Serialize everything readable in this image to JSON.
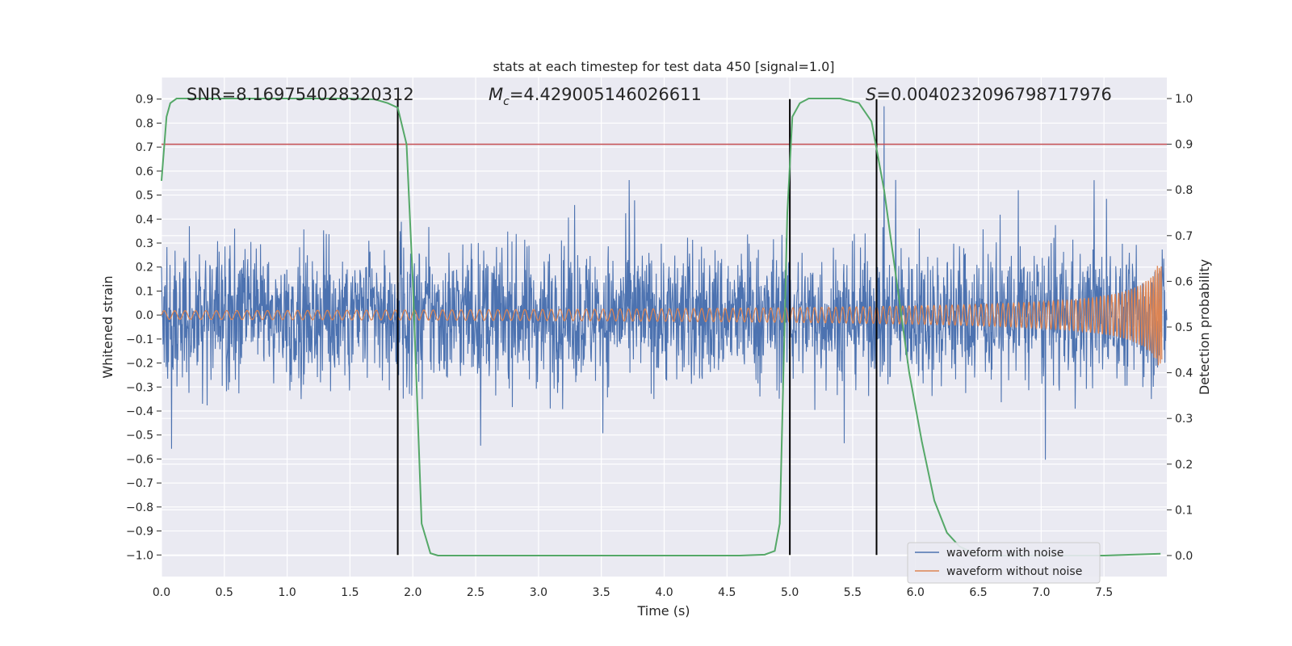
{
  "chart_data": {
    "type": "line",
    "title": "stats at each timestep for test data 450 [signal=1.0]",
    "xlabel": "Time (s)",
    "ylabel_left": "Whitened strain",
    "ylabel_right": "Detection probability",
    "xlim": [
      0.0,
      8.0
    ],
    "ylim_left": [
      -1.09,
      0.99
    ],
    "ylim_right": [
      -0.046,
      1.046
    ],
    "x_ticks": [
      "0.0",
      "0.5",
      "1.0",
      "1.5",
      "2.0",
      "2.5",
      "3.0",
      "3.5",
      "4.0",
      "4.5",
      "5.0",
      "5.5",
      "6.0",
      "6.5",
      "7.0",
      "7.5"
    ],
    "y_ticks_left": [
      "0.9",
      "0.8",
      "0.7",
      "0.6",
      "0.5",
      "0.4",
      "0.3",
      "0.2",
      "0.1",
      "0.0",
      "−0.1",
      "−0.2",
      "−0.3",
      "−0.4",
      "−0.5",
      "−0.6",
      "−0.7",
      "−0.8",
      "−0.9",
      "−1.0"
    ],
    "y_ticks_right": [
      "1.0",
      "0.9",
      "0.8",
      "0.7",
      "0.6",
      "0.5",
      "0.4",
      "0.3",
      "0.2",
      "0.1",
      "0.0"
    ],
    "grid": true,
    "legend_position": "bottom-right",
    "annotations": {
      "snr": "SNR=8.169754028320312",
      "mc_symbol": "M",
      "mc_subscript": "c",
      "mc_value": "=4.429005146026611",
      "s_symbol": "S",
      "s_value": "=0.0040232096798717976"
    },
    "threshold": {
      "axis": "right",
      "y": 0.9,
      "color": "#c44e52"
    },
    "vertical_lines": [
      1.88,
      5.0,
      5.69
    ],
    "series": [
      {
        "name": "waveform with noise",
        "color": "#4c72b0",
        "axis": "left",
        "envelope_abs": 0.5,
        "peak_abs": 0.9
      },
      {
        "name": "waveform without noise",
        "color": "#dd8452",
        "axis": "left",
        "envelope_start": 0.018,
        "envelope_end": 0.22
      },
      {
        "name": "",
        "color": "#55a868",
        "axis": "right",
        "x": [
          0.0,
          0.04,
          0.07,
          0.12,
          0.2,
          0.5,
          1.0,
          1.5,
          1.7,
          1.8,
          1.88,
          1.95,
          2.0,
          2.07,
          2.14,
          2.2,
          2.5,
          3.0,
          4.0,
          4.6,
          4.8,
          4.88,
          4.92,
          4.98,
          5.02,
          5.08,
          5.15,
          5.25,
          5.4,
          5.55,
          5.65,
          5.75,
          5.85,
          5.95,
          6.05,
          6.15,
          6.25,
          6.35,
          6.5,
          7.0,
          7.5,
          7.95
        ],
        "y": [
          0.82,
          0.96,
          0.99,
          1.0,
          1.0,
          1.0,
          1.0,
          1.0,
          0.998,
          0.99,
          0.98,
          0.9,
          0.6,
          0.07,
          0.005,
          0.0,
          0.0,
          0.0,
          0.0,
          0.0,
          0.002,
          0.01,
          0.07,
          0.75,
          0.96,
          0.99,
          1.0,
          1.0,
          1.0,
          0.99,
          0.95,
          0.8,
          0.6,
          0.4,
          0.25,
          0.12,
          0.05,
          0.02,
          0.0,
          0.0,
          0.0,
          0.004
        ]
      }
    ]
  }
}
